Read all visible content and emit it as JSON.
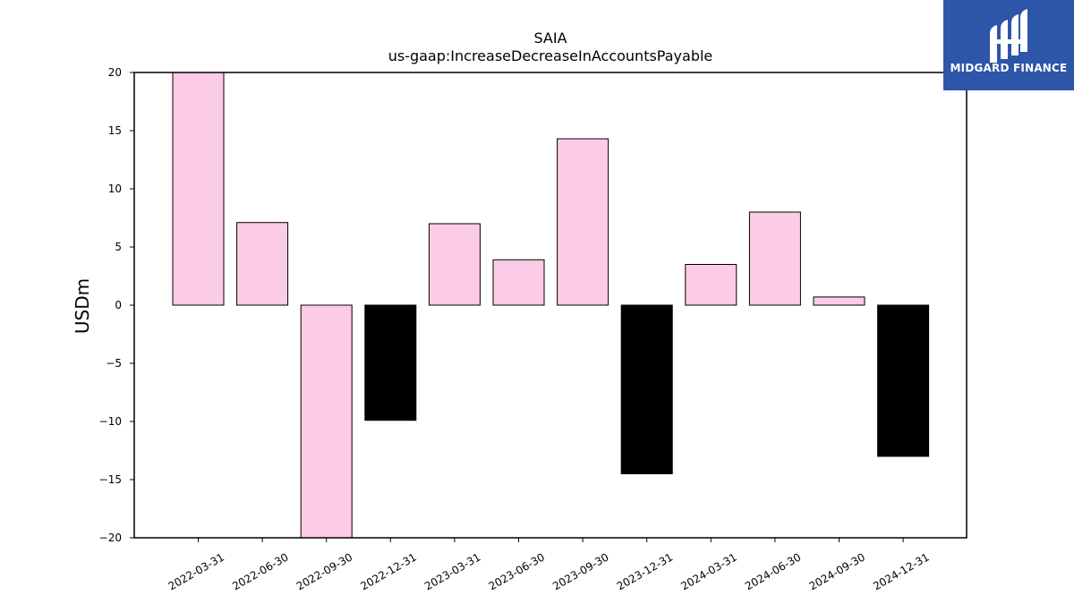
{
  "logo": {
    "text": "MIDGARD FINANCE",
    "background": "#2d55a8"
  },
  "chart_data": {
    "type": "bar",
    "title": "SAIA",
    "subtitle": "us-gaap:IncreaseDecreaseInAccountsPayable",
    "xlabel": "",
    "ylabel": "USDm",
    "ylim": [
      -20,
      20
    ],
    "yticks": [
      20,
      15,
      10,
      5,
      0,
      -5,
      -10,
      -15,
      -20
    ],
    "ytick_labels": [
      "20",
      "15",
      "10",
      "5",
      "0",
      "−5",
      "−10",
      "−15",
      "−20"
    ],
    "categories": [
      "2022-03-31",
      "2022-06-30",
      "2022-09-30",
      "2022-12-31",
      "2023-03-31",
      "2023-06-30",
      "2023-09-30",
      "2023-12-31",
      "2024-03-31",
      "2024-06-30",
      "2024-09-30",
      "2024-12-31"
    ],
    "values": [
      21.0,
      7.1,
      -21.0,
      -9.9,
      7.0,
      3.9,
      14.3,
      -14.5,
      3.5,
      8.0,
      0.7,
      -13.0
    ],
    "bar_colors": [
      "#fccbe5",
      "#fccbe5",
      "#fccbe5",
      "#000000",
      "#fccbe5",
      "#fccbe5",
      "#fccbe5",
      "#000000",
      "#fccbe5",
      "#fccbe5",
      "#fccbe5",
      "#000000"
    ],
    "grid": false,
    "legend": "none"
  }
}
